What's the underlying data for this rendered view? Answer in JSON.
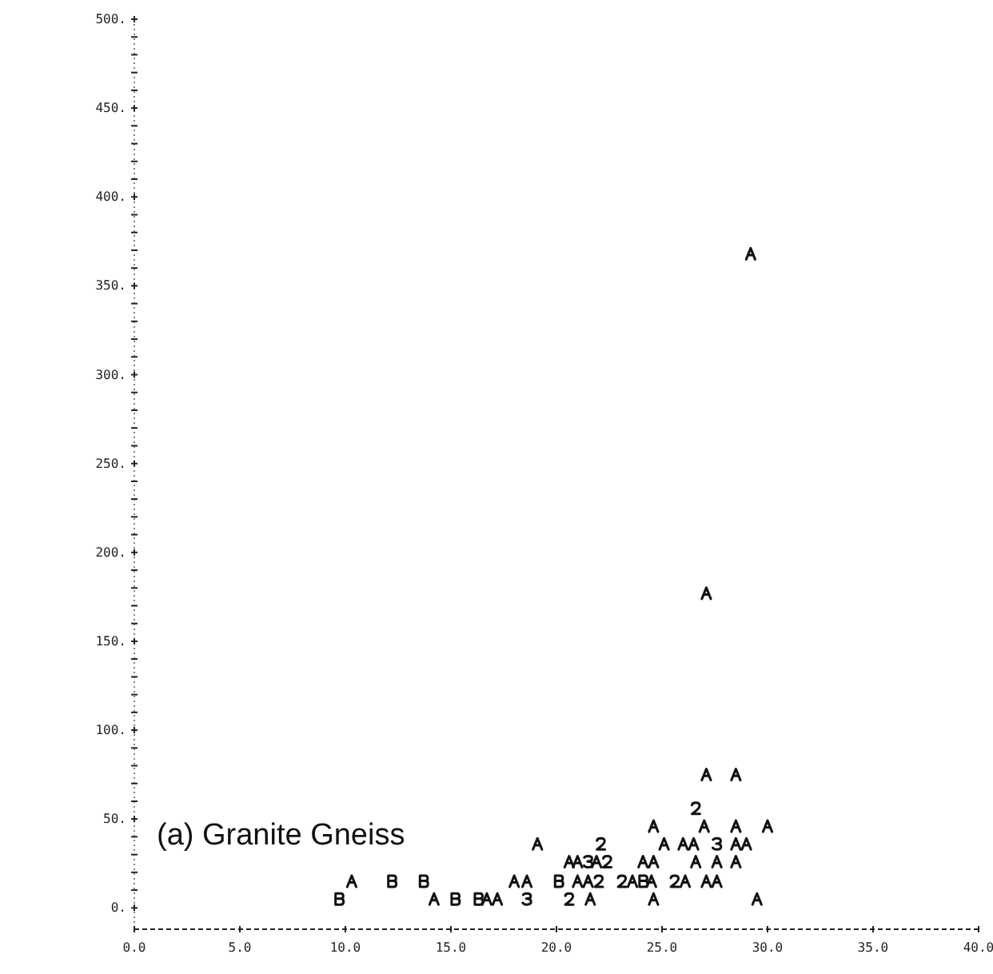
{
  "chart_data": {
    "type": "scatter",
    "annotations": [
      "(a) Granite Gneiss"
    ],
    "xlim": [
      0,
      40
    ],
    "ylim": [
      -12,
      500
    ],
    "xticks": [
      {
        "value": 0,
        "label": "0.0"
      },
      {
        "value": 5,
        "label": "5.0"
      },
      {
        "value": 10,
        "label": "10.0"
      },
      {
        "value": 15,
        "label": "15.0"
      },
      {
        "value": 20,
        "label": "20.0"
      },
      {
        "value": 25,
        "label": "25.0"
      },
      {
        "value": 30,
        "label": "30.0"
      },
      {
        "value": 35,
        "label": "35.0"
      },
      {
        "value": 40,
        "label": "40.0"
      }
    ],
    "yticks": [
      {
        "value": 0,
        "label": "0."
      },
      {
        "value": 10,
        "label": null
      },
      {
        "value": 20,
        "label": null
      },
      {
        "value": 30,
        "label": null
      },
      {
        "value": 40,
        "label": null
      },
      {
        "value": 50,
        "label": "50."
      },
      {
        "value": 60,
        "label": null
      },
      {
        "value": 70,
        "label": null
      },
      {
        "value": 80,
        "label": null
      },
      {
        "value": 90,
        "label": null
      },
      {
        "value": 100,
        "label": "100."
      },
      {
        "value": 110,
        "label": null
      },
      {
        "value": 120,
        "label": null
      },
      {
        "value": 130,
        "label": null
      },
      {
        "value": 140,
        "label": null
      },
      {
        "value": 150,
        "label": "150."
      },
      {
        "value": 160,
        "label": null
      },
      {
        "value": 170,
        "label": null
      },
      {
        "value": 180,
        "label": null
      },
      {
        "value": 190,
        "label": null
      },
      {
        "value": 200,
        "label": "200."
      },
      {
        "value": 210,
        "label": null
      },
      {
        "value": 220,
        "label": null
      },
      {
        "value": 230,
        "label": null
      },
      {
        "value": 240,
        "label": null
      },
      {
        "value": 250,
        "label": "250."
      },
      {
        "value": 260,
        "label": null
      },
      {
        "value": 270,
        "label": null
      },
      {
        "value": 280,
        "label": null
      },
      {
        "value": 290,
        "label": null
      },
      {
        "value": 300,
        "label": "300."
      },
      {
        "value": 310,
        "label": null
      },
      {
        "value": 320,
        "label": null
      },
      {
        "value": 330,
        "label": null
      },
      {
        "value": 340,
        "label": null
      },
      {
        "value": 350,
        "label": "350."
      },
      {
        "value": 360,
        "label": null
      },
      {
        "value": 370,
        "label": null
      },
      {
        "value": 380,
        "label": null
      },
      {
        "value": 390,
        "label": null
      },
      {
        "value": 400,
        "label": "400."
      },
      {
        "value": 410,
        "label": null
      },
      {
        "value": 420,
        "label": null
      },
      {
        "value": 430,
        "label": null
      },
      {
        "value": 440,
        "label": null
      },
      {
        "value": 450,
        "label": "450."
      },
      {
        "value": 460,
        "label": null
      },
      {
        "value": 470,
        "label": null
      },
      {
        "value": 480,
        "label": null
      },
      {
        "value": 490,
        "label": null
      },
      {
        "value": 500,
        "label": "500."
      }
    ],
    "grid": false,
    "series": [
      {
        "color": "#111111",
        "x": [
          19.1,
          20.6,
          21.0,
          21.9,
          24.1,
          24.6,
          26.6,
          27.6,
          28.5,
          10.3,
          18.0,
          18.6,
          21.0,
          21.5,
          23.6,
          24.5,
          26.1,
          27.1,
          27.6,
          14.2,
          16.7,
          17.2,
          21.6,
          24.6,
          29.5,
          25.1,
          26.0,
          26.5,
          28.5,
          29.0,
          24.6,
          27.0,
          28.5,
          30.0,
          27.1,
          28.5,
          29.2,
          27.1
        ],
        "values": [
          36,
          26,
          26,
          26,
          26,
          26,
          26,
          26,
          26,
          15,
          15,
          15,
          15,
          15,
          15,
          15,
          15,
          15,
          15,
          5,
          5,
          5,
          5,
          5,
          5,
          36,
          36,
          36,
          36,
          36,
          46,
          46,
          46,
          46,
          75,
          75,
          368,
          177
        ]
      },
      {
        "color": "#111111",
        "x": [
          12.2,
          13.7,
          20.1,
          24.1,
          9.7,
          15.2,
          16.3
        ],
        "values": [
          15,
          15,
          15,
          15,
          5,
          5,
          5
        ]
      },
      {
        "color": "#111111",
        "x": [
          22.1,
          22.4,
          22.0,
          23.1,
          25.6,
          20.6,
          26.6
        ],
        "values": [
          36,
          26,
          15,
          15,
          15,
          5,
          56
        ]
      },
      {
        "color": "#111111",
        "x": [
          21.5,
          18.6,
          27.6
        ],
        "values": [
          26,
          5,
          36
        ]
      }
    ]
  }
}
